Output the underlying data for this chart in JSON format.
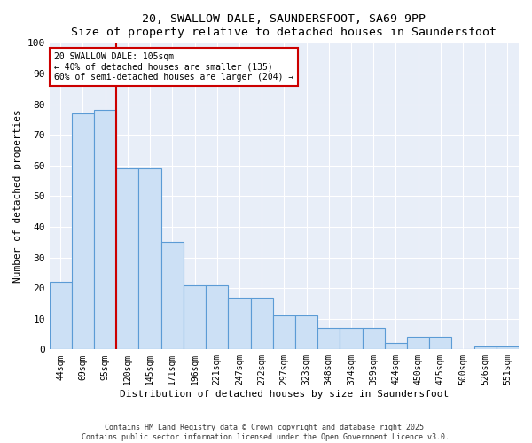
{
  "title": "20, SWALLOW DALE, SAUNDERSFOOT, SA69 9PP",
  "subtitle": "Size of property relative to detached houses in Saundersfoot",
  "xlabel": "Distribution of detached houses by size in Saundersfoot",
  "ylabel": "Number of detached properties",
  "categories": [
    "44sqm",
    "69sqm",
    "95sqm",
    "120sqm",
    "145sqm",
    "171sqm",
    "196sqm",
    "221sqm",
    "247sqm",
    "272sqm",
    "297sqm",
    "323sqm",
    "348sqm",
    "374sqm",
    "399sqm",
    "424sqm",
    "450sqm",
    "475sqm",
    "500sqm",
    "526sqm",
    "551sqm"
  ],
  "values": [
    22,
    77,
    78,
    59,
    59,
    35,
    21,
    21,
    17,
    17,
    11,
    11,
    7,
    7,
    7,
    2,
    4,
    4,
    0,
    1,
    1
  ],
  "bar_color": "#cce0f5",
  "bar_edge_color": "#5b9bd5",
  "red_line_x": 2.5,
  "annotation_text": "20 SWALLOW DALE: 105sqm\n← 40% of detached houses are smaller (135)\n60% of semi-detached houses are larger (204) →",
  "annotation_box_color": "#ffffff",
  "annotation_box_edge_color": "#cc0000",
  "red_line_color": "#cc0000",
  "ylim": [
    0,
    100
  ],
  "yticks": [
    0,
    10,
    20,
    30,
    40,
    50,
    60,
    70,
    80,
    90,
    100
  ],
  "background_color": "#e8eef8",
  "fig_background_color": "#ffffff",
  "grid_color": "#ffffff",
  "footer_line1": "Contains HM Land Registry data © Crown copyright and database right 2025.",
  "footer_line2": "Contains public sector information licensed under the Open Government Licence v3.0."
}
